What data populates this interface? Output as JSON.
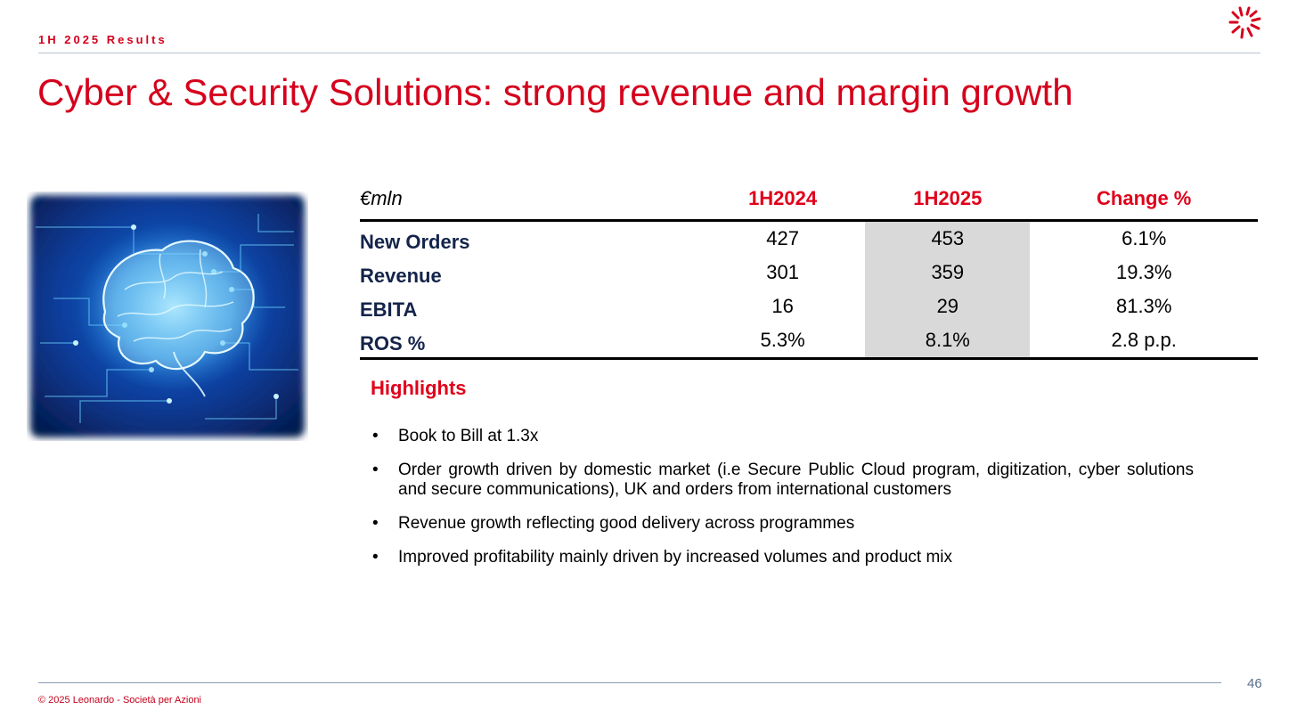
{
  "header": {
    "section": "1H 2025 Results"
  },
  "title": "Cyber & Security Solutions: strong revenue and margin growth",
  "table": {
    "unit": "€mln",
    "columns": [
      "1H2024",
      "1H2025",
      "Change %"
    ],
    "rows": [
      {
        "label": "New Orders",
        "values": [
          "427",
          "453",
          "6.1%"
        ]
      },
      {
        "label": "Revenue",
        "values": [
          "301",
          "359",
          "19.3%"
        ]
      },
      {
        "label": "EBITA",
        "values": [
          "16",
          "29",
          "81.3%"
        ]
      },
      {
        "label": "ROS %",
        "values": [
          "5.3%",
          "8.1%",
          "2.8 p.p."
        ]
      }
    ]
  },
  "highlights": {
    "title": "Highlights",
    "bullet": "•",
    "items": [
      "Book to Bill at 1.3x",
      "Order growth driven by domestic market (i.e Secure Public Cloud program, digitization, cyber solutions and secure communications), UK and orders from international customers",
      "Revenue growth reflecting good delivery across programmes",
      "Improved profitability mainly driven by increased volumes and product mix"
    ]
  },
  "footer": {
    "copyright": "© 2025 Leonardo - Società per Azioni",
    "page": "46"
  },
  "colors": {
    "brand_red": "#d5001c",
    "label_navy": "#14244a",
    "shade": "#d9d9d9"
  },
  "icons": {
    "logo": "leonardo-logo",
    "image": "digital-brain-image"
  }
}
